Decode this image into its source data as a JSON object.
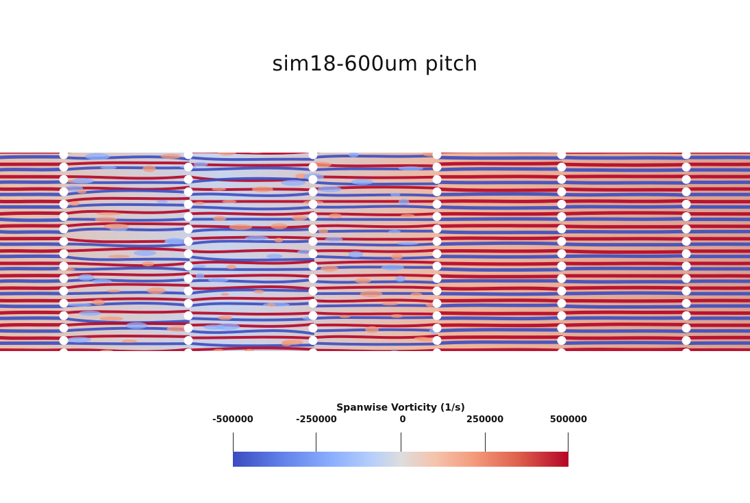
{
  "title": "sim18-600um pitch",
  "colorbar": {
    "title": "Spanwise Vorticity (1/s)",
    "ticks": [
      "-500000",
      "-250000",
      "0",
      "250000",
      "500000"
    ],
    "min": -500000,
    "max": 500000,
    "colors": [
      "#3b4cc0",
      "#dddddd",
      "#b40426"
    ]
  },
  "field": {
    "pin_columns": 6,
    "pins_per_column": 17,
    "low_color": "#3b4cc0",
    "mid_color": "#dddddd",
    "high_color": "#b40426"
  }
}
